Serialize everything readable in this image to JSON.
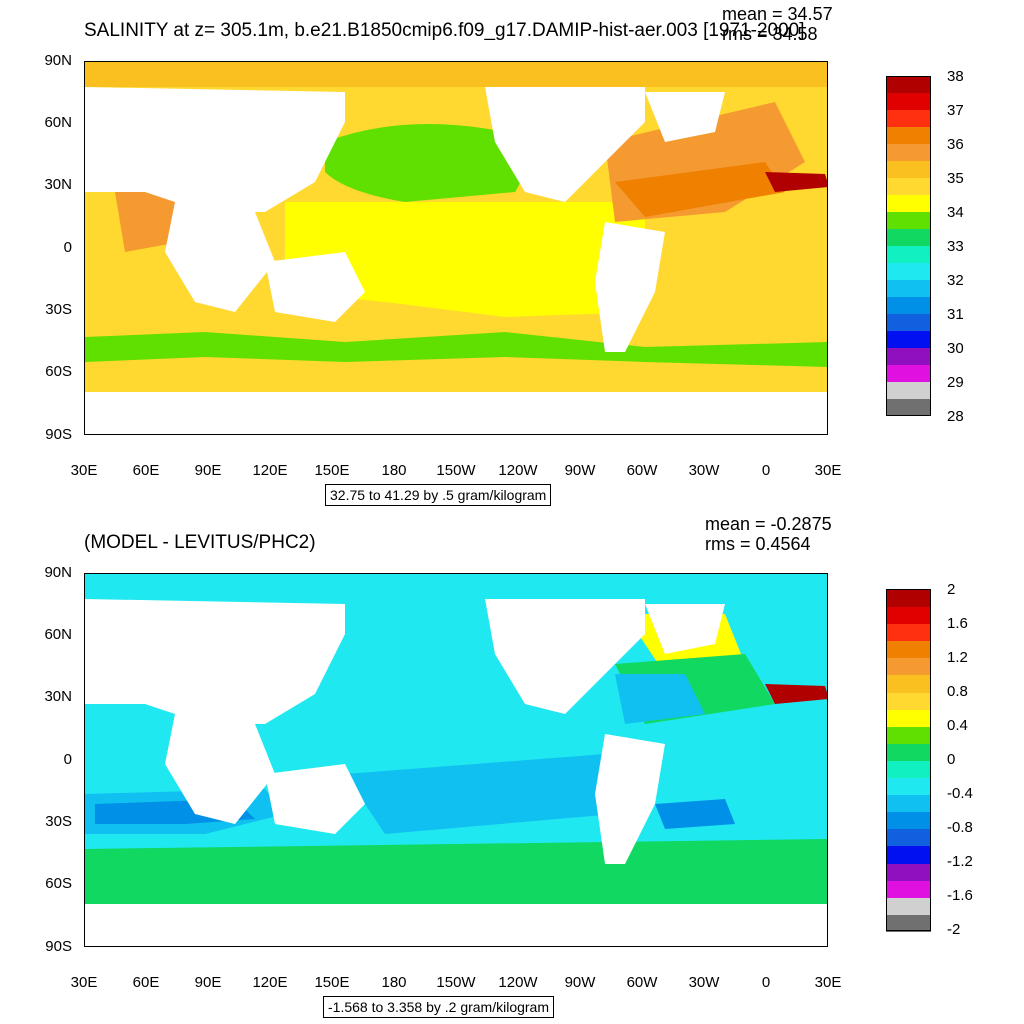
{
  "figure": {
    "top": {
      "title": "SALINITY at z= 305.1m, b.e21.B1850cmip6.f09_g17.DAMIP-hist-aer.003 [1971-2000]",
      "mean_text": "mean = 34.57",
      "rms_text": "rms = 34.58",
      "range_text": "32.75 to 41.29 by .5 gram/kilogram",
      "colorbar_labels": [
        "38",
        "37",
        "36",
        "35",
        "34",
        "33",
        "32",
        "31",
        "30",
        "29",
        "28"
      ],
      "colorbar_colors": [
        "#b00000",
        "#e00000",
        "#ff3010",
        "#f08000",
        "#f59a30",
        "#fac020",
        "#ffd830",
        "#ffff00",
        "#60e000",
        "#10d860",
        "#10f0c0",
        "#20e8f0",
        "#10c0f0",
        "#0090e8",
        "#1060e0",
        "#0010f0",
        "#9010c0",
        "#e010e0",
        "#d0d0d0",
        "#707070"
      ]
    },
    "bottom": {
      "title": "(MODEL - LEVITUS/PHC2)",
      "mean_text": "mean = -0.2875",
      "rms_text": "rms = 0.4564",
      "range_text": "-1.568 to 3.358 by .2 gram/kilogram",
      "colorbar_labels": [
        "2",
        "1.6",
        "1.2",
        "0.8",
        "0.4",
        "0",
        "-0.4",
        "-0.8",
        "-1.2",
        "-1.6",
        "-2"
      ],
      "colorbar_colors": [
        "#b00000",
        "#e00000",
        "#ff3010",
        "#f08000",
        "#f59a30",
        "#fac020",
        "#ffd830",
        "#ffff00",
        "#60e000",
        "#10d860",
        "#10f0c0",
        "#20e8f0",
        "#10c0f0",
        "#0090e8",
        "#1060e0",
        "#0010f0",
        "#9010c0",
        "#e010e0",
        "#d0d0d0",
        "#707070"
      ]
    },
    "lat_labels": [
      "90N",
      "60N",
      "30N",
      "0",
      "30S",
      "60S",
      "90S"
    ],
    "lon_labels": [
      "30E",
      "60E",
      "90E",
      "120E",
      "150E",
      "180",
      "150W",
      "120W",
      "90W",
      "60W",
      "30W",
      "0",
      "30E"
    ],
    "land_color": "#ffffff",
    "ocean_colors_top": {
      "main": "#ffd830",
      "tropical": "#ffff00",
      "subpolar": "#60e000",
      "atlantic": "#f08000",
      "mediterranean": "#e00000",
      "arctic": "#fac020"
    },
    "ocean_colors_bottom": {
      "main": "#20e8f0",
      "blue": "#10c0f0",
      "deep": "#0090e8",
      "green": "#10d860",
      "yellow": "#ffff00",
      "red": "#b00000"
    }
  }
}
